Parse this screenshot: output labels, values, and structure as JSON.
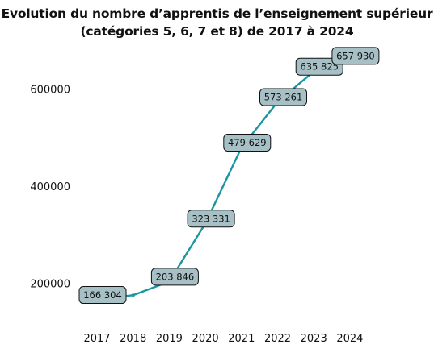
{
  "chart_data": {
    "type": "line",
    "title_lines": [
      "Evolution du nombre d’apprentis de l’enseignement supérieur",
      "(catégories 5, 6, 7 et 8) de 2017 à 2024"
    ],
    "x": [
      "2017",
      "2018",
      "2019",
      "2020",
      "2021",
      "2022",
      "2023",
      "2024"
    ],
    "values": [
      166304,
      176000,
      203846,
      323331,
      479629,
      573261,
      635825,
      657930
    ],
    "data_labels": [
      "166 304",
      "",
      "203 846",
      "323 331",
      "479 629",
      "573 261",
      "635 825",
      "657 930"
    ],
    "y_ticks": [
      "200000",
      "400000",
      "600000"
    ],
    "y_tick_values": [
      200000,
      400000,
      600000
    ],
    "ylim": [
      120000,
      690000
    ],
    "grid": false,
    "line_color": "#1a96a0",
    "label_box_color": "#a7c0c6"
  }
}
